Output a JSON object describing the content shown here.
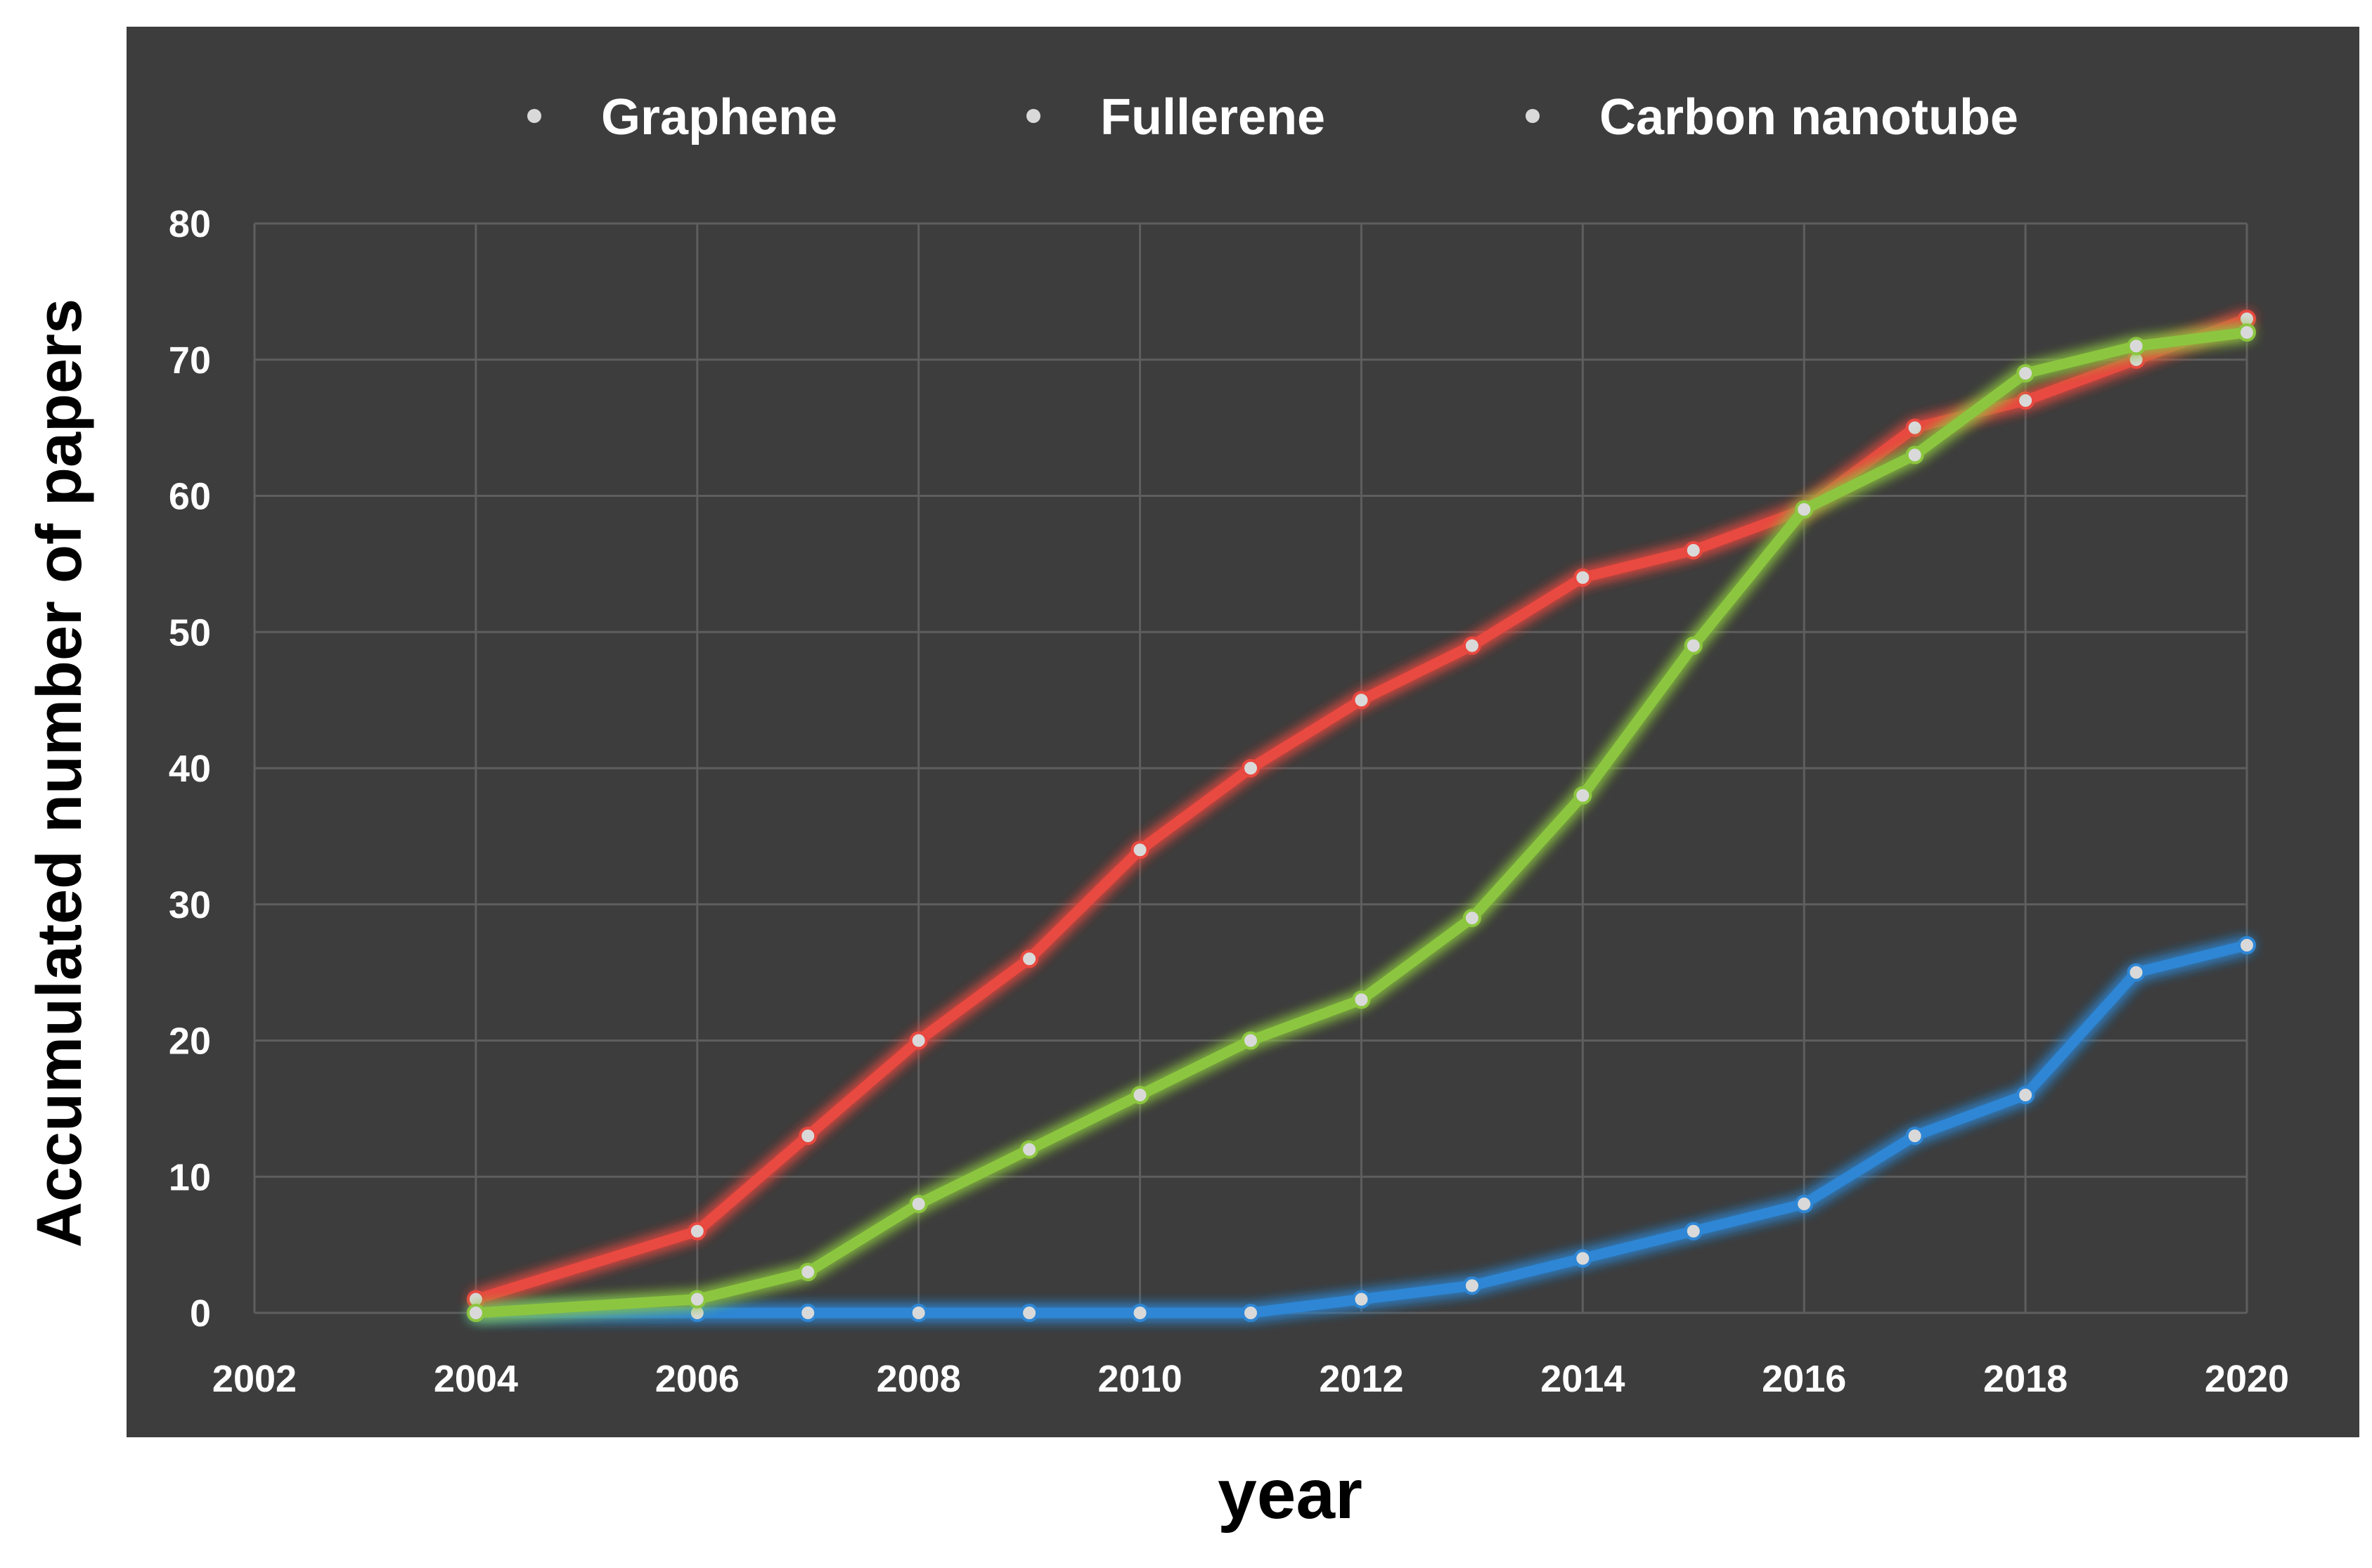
{
  "chart_data": {
    "type": "line",
    "xlabel": "year",
    "ylabel": "Accumulated number of papers",
    "xlim": [
      2002,
      2020
    ],
    "ylim": [
      0,
      80
    ],
    "x_ticks": [
      "2002",
      "2004",
      "2006",
      "2008",
      "2010",
      "2012",
      "2014",
      "2016",
      "2018",
      "2020"
    ],
    "y_ticks": [
      "0",
      "10",
      "20",
      "30",
      "40",
      "50",
      "60",
      "70",
      "80"
    ],
    "grid": true,
    "legend_position": "top",
    "background_color": "#3d3d3d",
    "series": [
      {
        "name": "Graphene",
        "color": "#2e86d4",
        "x": [
          2004,
          2006,
          2007,
          2008,
          2009,
          2010,
          2011,
          2012,
          2013,
          2014,
          2015,
          2016,
          2017,
          2018,
          2019,
          2020
        ],
        "y": [
          0,
          0,
          0,
          0,
          0,
          0,
          0,
          1,
          2,
          4,
          6,
          8,
          13,
          16,
          25,
          27
        ]
      },
      {
        "name": "Fullerene",
        "color": "#e8483f",
        "x": [
          2004,
          2006,
          2007,
          2008,
          2009,
          2010,
          2011,
          2012,
          2013,
          2014,
          2015,
          2016,
          2017,
          2018,
          2019,
          2020
        ],
        "y": [
          1,
          6,
          13,
          20,
          26,
          34,
          40,
          45,
          49,
          54,
          56,
          59,
          65,
          67,
          70,
          73
        ]
      },
      {
        "name": "Carbon nanotube",
        "color": "#8cc63f",
        "x": [
          2004,
          2006,
          2007,
          2008,
          2009,
          2010,
          2011,
          2012,
          2013,
          2014,
          2015,
          2016,
          2017,
          2018,
          2019,
          2020
        ],
        "y": [
          0,
          1,
          3,
          8,
          12,
          16,
          20,
          23,
          29,
          38,
          49,
          59,
          63,
          69,
          71,
          72
        ]
      }
    ]
  }
}
